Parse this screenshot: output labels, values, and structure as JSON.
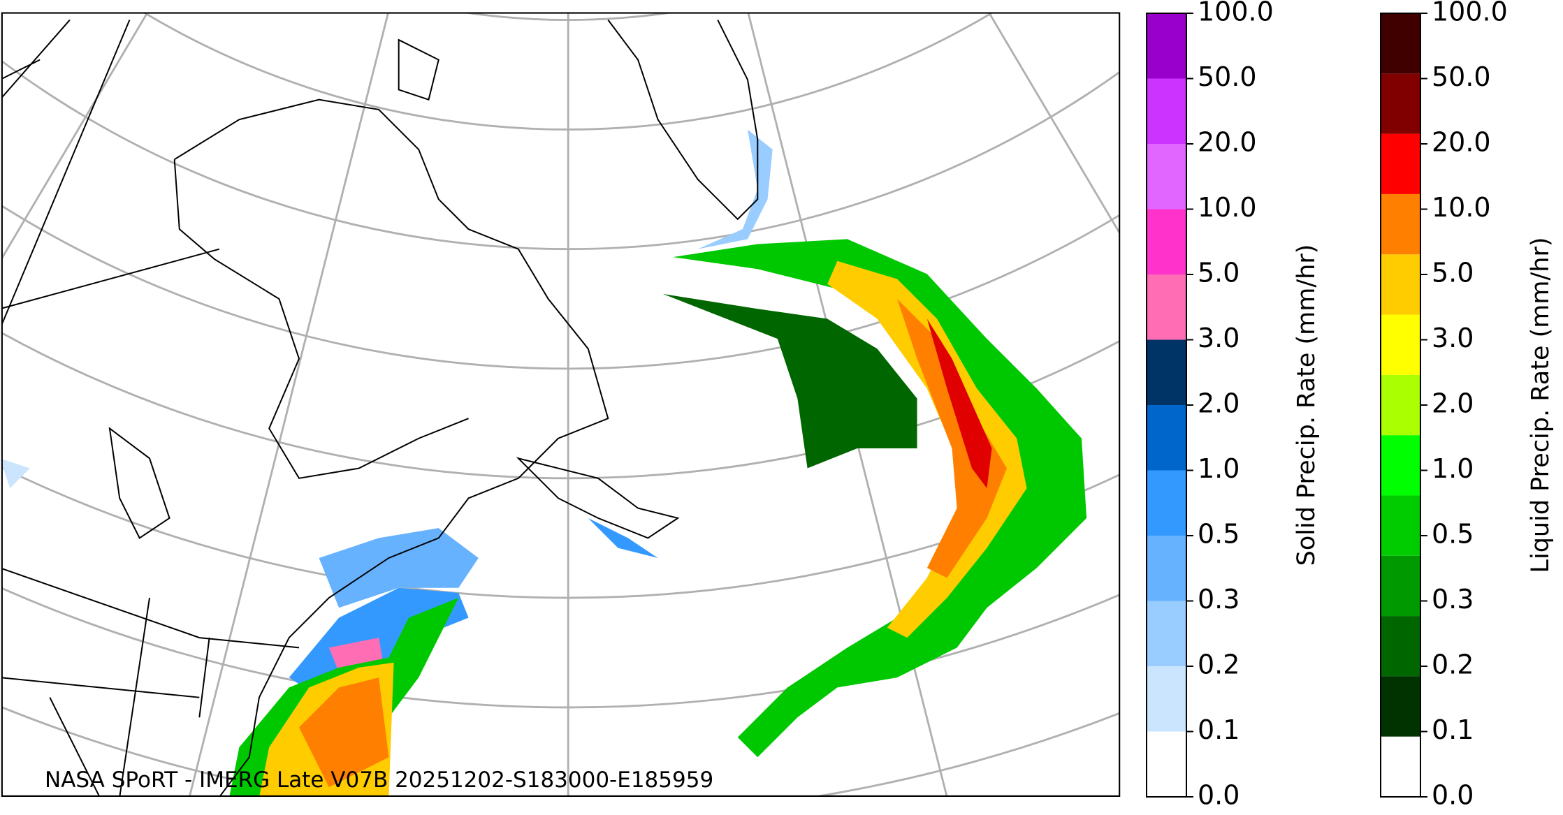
{
  "map": {
    "footer": "NASA SPoRT - IMERG Late V07B 20251202-S183000-E185959"
  },
  "colorbars": [
    {
      "label": "Solid Precip. Rate (mm/hr)",
      "ticks": [
        "0.0",
        "0.1",
        "0.2",
        "0.3",
        "0.5",
        "1.0",
        "2.0",
        "3.0",
        "5.0",
        "10.0",
        "20.0",
        "50.0",
        "100.0"
      ],
      "colors": [
        "#ffffff",
        "#cce5ff",
        "#99ccff",
        "#66b2ff",
        "#3399ff",
        "#0066cc",
        "#003366",
        "#ff6eb4",
        "#ff33cc",
        "#e066ff",
        "#cc33ff",
        "#9900cc"
      ]
    },
    {
      "label": "Liquid Precip. Rate (mm/hr)",
      "ticks": [
        "0.0",
        "0.1",
        "0.2",
        "0.3",
        "0.5",
        "1.0",
        "2.0",
        "3.0",
        "5.0",
        "10.0",
        "20.0",
        "50.0",
        "100.0"
      ],
      "colors": [
        "#ffffff",
        "#003300",
        "#006600",
        "#009900",
        "#00cc00",
        "#00ff00",
        "#aaff00",
        "#ffff00",
        "#ffcc00",
        "#ff8000",
        "#ff0000",
        "#800000",
        "#400000"
      ]
    }
  ]
}
